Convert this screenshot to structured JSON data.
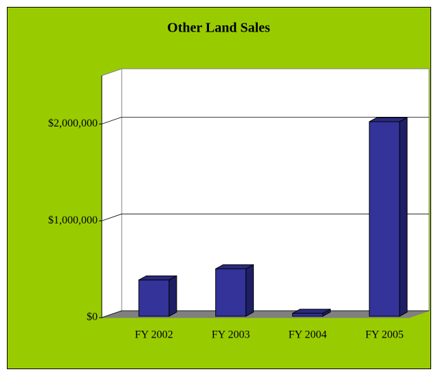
{
  "chart_data": {
    "type": "bar",
    "title": "Other Land Sales",
    "categories": [
      "FY 2002",
      "FY 2003",
      "FY 2004",
      "FY 2005"
    ],
    "values": [
      375000,
      490000,
      30000,
      2010000
    ],
    "color": "#333399",
    "background": "#99cc00",
    "ylim": [
      0,
      2500000
    ],
    "yticks": [
      {
        "value": 0,
        "label": "$0"
      },
      {
        "value": 1000000,
        "label": "$1,000,000"
      },
      {
        "value": 2000000,
        "label": "$2,000,000"
      }
    ],
    "grid": true
  }
}
